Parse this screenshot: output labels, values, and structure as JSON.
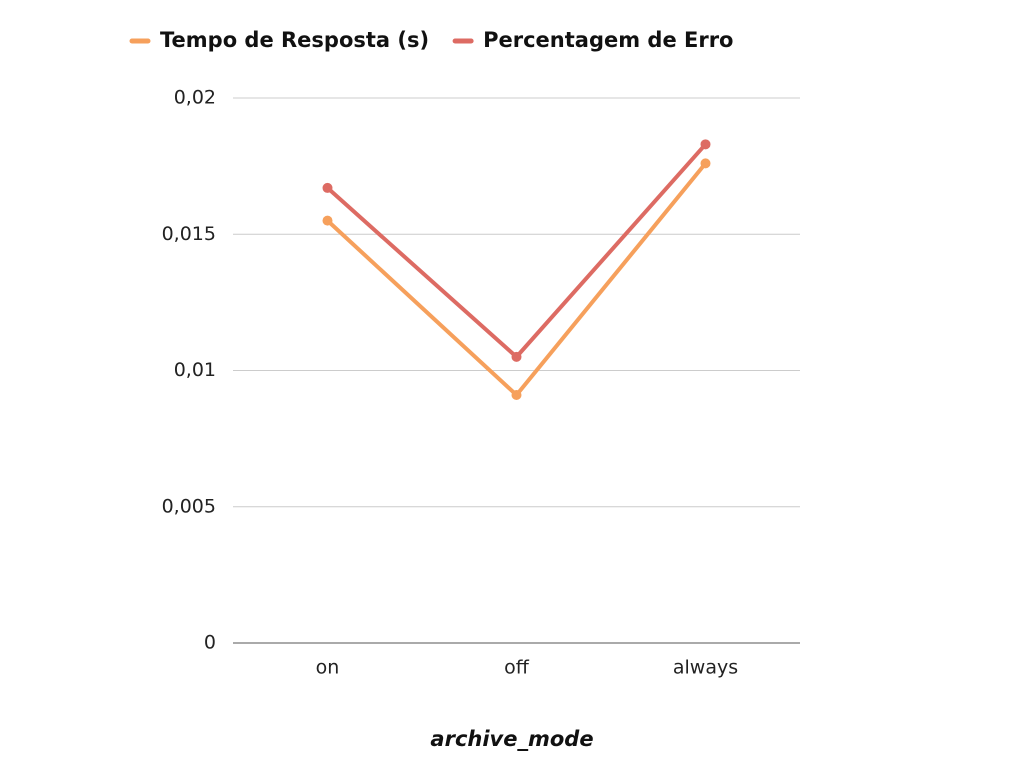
{
  "chart_data": {
    "type": "line",
    "x_label": "archive_mode",
    "categories": [
      "on",
      "off",
      "always"
    ],
    "series": [
      {
        "name": "Tempo de Resposta (s)",
        "color": "#f6a05c",
        "values": [
          0.0155,
          0.0091,
          0.0176
        ]
      },
      {
        "name": "Percentagem de Erro",
        "color": "#dd6b63",
        "values": [
          0.0167,
          0.0105,
          0.0183
        ]
      }
    ],
    "ylim": [
      0,
      0.02
    ],
    "yticks": [
      0,
      {
        "value": 0.005,
        "label": "0,005"
      },
      {
        "value": 0.01,
        "label": "0,01"
      },
      {
        "value": 0.015,
        "label": "0,015"
      },
      {
        "value": 0.02,
        "label": "0,02"
      }
    ],
    "grid": true,
    "legend": "top"
  }
}
